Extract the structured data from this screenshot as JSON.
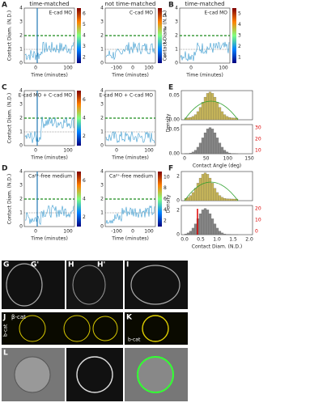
{
  "panels": [
    {
      "label": "A",
      "plots": [
        {
          "title": "time-matched",
          "inner": "E-cad MO",
          "xlabel": "Time (minutes)",
          "ylabel": "Contact Diam. (N.D.)",
          "xticks": [
            "0",
            "100"
          ],
          "yticks": [
            "0",
            "1",
            "2",
            "3",
            "4"
          ],
          "cbar": [
            "2",
            "3",
            "4",
            "5",
            "6"
          ]
        },
        {
          "title": "not time-matched",
          "inner": "C-cad MO",
          "xlabel": "Time (minutes)",
          "xticks": [
            "-100",
            "0",
            "100"
          ],
          "yticks": [
            "0",
            "1",
            "2",
            "3",
            "4"
          ],
          "cbar": [
            "1",
            "2",
            "3",
            "4"
          ]
        }
      ]
    },
    {
      "label": "B",
      "plots": [
        {
          "title": "time-matched",
          "inner": "E-cad MO",
          "xlabel": "Time (minutes)",
          "ylabel": "Contact Diam. (N.D.)",
          "xticks": [
            "0",
            "100"
          ],
          "yticks": [
            "0",
            "1",
            "2",
            "3",
            "4"
          ],
          "cbar": [
            "1",
            "2",
            "3",
            "4",
            "5"
          ]
        }
      ]
    },
    {
      "label": "C",
      "plots": [
        {
          "inner": "E-cad MO + C-cad MO",
          "xlabel": "Time (minutes)",
          "ylabel": "Contact Diam. (N.D.)",
          "xticks": [
            "0",
            "100"
          ],
          "yticks": [
            "0",
            "1",
            "2",
            "3",
            "4"
          ],
          "cbar": [
            "2",
            "4",
            "6"
          ]
        },
        {
          "inner": "E-cad MO + C-cad MO",
          "xlabel": "Time (minutes)",
          "xticks": [
            "0",
            "100"
          ],
          "yticks": [
            "0",
            "1",
            "2",
            "3",
            "4"
          ]
        }
      ]
    },
    {
      "label": "D",
      "plots": [
        {
          "inner": "Ca²⁺-free medium",
          "xlabel": "Time (minutes)",
          "ylabel": "Contact Diam. (N.D.)",
          "xticks": [
            "0",
            "100"
          ],
          "yticks": [
            "0",
            "1",
            "2",
            "3",
            "4"
          ],
          "cbar": [
            "2",
            "4",
            "6"
          ]
        },
        {
          "inner": "Ca²⁺-free medium",
          "xlabel": "Time (minutes)",
          "xticks": [
            "-100",
            "0",
            "100"
          ],
          "yticks": [
            "0",
            "1",
            "2",
            "3",
            "4"
          ],
          "cbar": [
            "2",
            "4",
            "6",
            "8",
            "10"
          ]
        }
      ]
    },
    {
      "label": "E",
      "hist": {
        "xlabel": "Contact Angle (deg)",
        "ylabel": "Density",
        "xticks": [
          "0",
          "50",
          "100",
          "150"
        ],
        "top_yticks": [
          "0.00",
          "0.05"
        ],
        "bottom_yticks": [
          "0.00",
          "0.05"
        ],
        "right_ticks": [
          "10",
          "20",
          "30"
        ]
      }
    },
    {
      "label": "F",
      "hist": {
        "xlabel": "Contact Diam. (N.D.)",
        "ylabel": "Density",
        "xticks": [
          "0.0",
          "0.5",
          "1.0",
          "1.5",
          "2.0"
        ],
        "top_yticks": [
          "0",
          "2"
        ],
        "bottom_yticks": [
          "0",
          "2"
        ],
        "right_ticks": [
          "0",
          "10",
          "20"
        ]
      }
    }
  ],
  "micrographs": {
    "labels": [
      "G",
      "G'",
      "H",
      "H'",
      "I",
      "J",
      "K",
      "L"
    ],
    "stain": "β-cat",
    "side": "b-cat",
    "k_note": "b-cat"
  }
}
